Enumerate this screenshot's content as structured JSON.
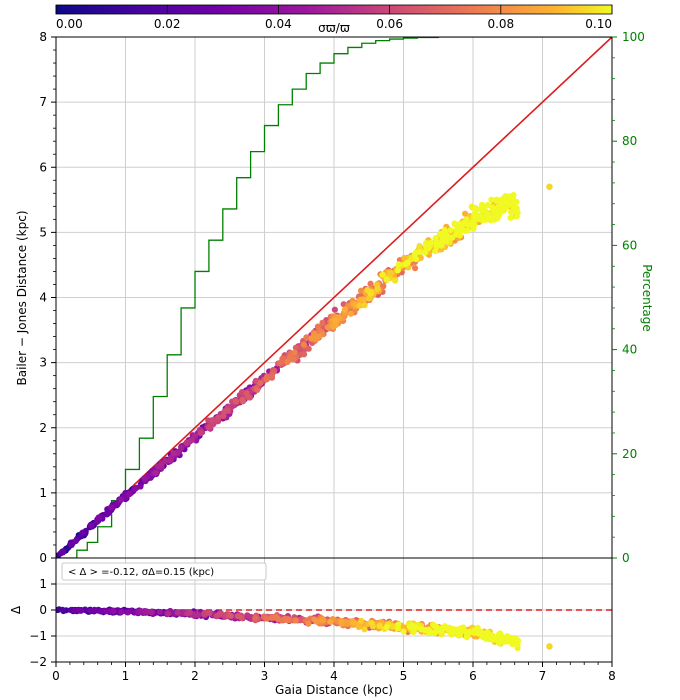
{
  "colorbar": {
    "label": "σϖ/ϖ",
    "ticks": [
      "0.00",
      "0.02",
      "0.04",
      "0.06",
      "0.08",
      "0.10"
    ],
    "range": [
      0,
      0.1
    ],
    "colormap": "plasma"
  },
  "chart_data": [
    {
      "type": "scatter",
      "panel": "main",
      "xlabel": "",
      "ylabel": "Bailer − Jones Distance (kpc)",
      "y2label": "Percentage",
      "xlim": [
        0,
        8
      ],
      "ylim": [
        0,
        8
      ],
      "y2lim": [
        0,
        100
      ],
      "xticks": [
        "0",
        "1",
        "2",
        "3",
        "4",
        "5",
        "6",
        "7",
        "8"
      ],
      "yticks": [
        "0",
        "1",
        "2",
        "3",
        "4",
        "5",
        "6",
        "7",
        "8"
      ],
      "y2ticks": [
        "0",
        "20",
        "40",
        "60",
        "80",
        "100"
      ],
      "grid": true,
      "identity_line": {
        "color": "#dd1c1c",
        "from": [
          0,
          0
        ],
        "to": [
          8,
          8
        ]
      },
      "scatter_trend": {
        "x": [
          0.0,
          0.5,
          1.0,
          1.5,
          2.0,
          2.5,
          3.0,
          3.5,
          4.0,
          4.5,
          5.0,
          5.5,
          6.0,
          6.5,
          6.7
        ],
        "y": [
          0.0,
          0.48,
          0.95,
          1.4,
          1.85,
          2.3,
          2.75,
          3.2,
          3.65,
          4.05,
          4.5,
          4.85,
          5.2,
          5.45,
          5.4
        ]
      },
      "outlier": {
        "x": 7.1,
        "y": 5.7
      },
      "cumulative_step": {
        "color": "#008000",
        "x": [
          0.0,
          0.3,
          0.45,
          0.6,
          0.8,
          1.0,
          1.2,
          1.4,
          1.6,
          1.8,
          2.0,
          2.2,
          2.4,
          2.6,
          2.8,
          3.0,
          3.2,
          3.4,
          3.6,
          3.8,
          4.0,
          4.2,
          4.4,
          4.6,
          4.8,
          5.0,
          5.2,
          5.5,
          5.8,
          6.1
        ],
        "y": [
          0,
          1.5,
          3,
          6,
          11,
          17,
          23,
          31,
          39,
          48,
          55,
          61,
          67,
          73,
          78,
          83,
          87,
          90,
          93,
          95,
          96.8,
          98,
          98.8,
          99.3,
          99.6,
          99.8,
          99.9,
          100,
          100,
          100
        ]
      }
    },
    {
      "type": "scatter",
      "panel": "residual",
      "xlabel": "Gaia Distance (kpc)",
      "ylabel": "Δ",
      "xlim": [
        0,
        8
      ],
      "ylim": [
        -2,
        2
      ],
      "xticks": [
        "0",
        "1",
        "2",
        "3",
        "4",
        "5",
        "6",
        "7",
        "8"
      ],
      "yticks": [
        "1",
        "0",
        "−1",
        "−2"
      ],
      "grid": true,
      "mean_line": {
        "y": 0,
        "color": "#dd1c1c",
        "style": "dashed"
      },
      "annotation": "< Δ > =-0.12, σΔ=0.15 (kpc)",
      "scatter_trend": {
        "x": [
          0.0,
          1.0,
          2.0,
          3.0,
          4.0,
          5.0,
          6.0,
          6.7
        ],
        "y": [
          0.0,
          -0.05,
          -0.15,
          -0.3,
          -0.45,
          -0.65,
          -0.85,
          -1.25
        ]
      },
      "outlier": {
        "x": 7.1,
        "y": -1.4
      }
    }
  ]
}
